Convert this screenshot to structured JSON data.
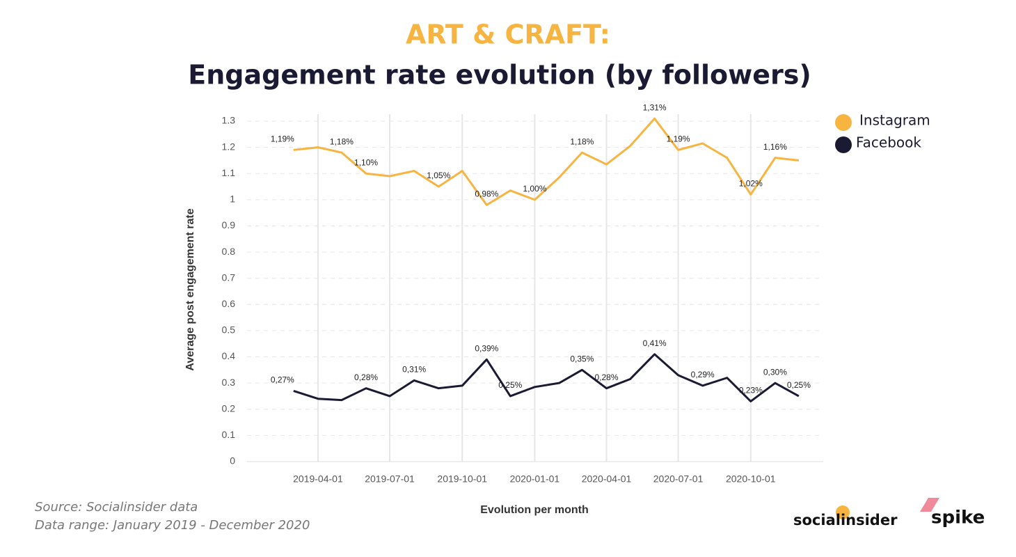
{
  "chart_data": {
    "type": "line",
    "title": "ART & CRAFT:",
    "subtitle": "Engagement rate evolution (by followers)",
    "x_label": "Evolution per month",
    "y_label": "Average post engagement rate",
    "source": "Source: Socialinsider data",
    "date_range": "Data range: January 2019 - December 2020",
    "brands": [
      "socialinsider",
      "spike"
    ],
    "x": [
      "2019-03-01",
      "2019-04-01",
      "2019-05-01",
      "2019-06-01",
      "2019-07-01",
      "2019-08-01",
      "2019-09-01",
      "2019-10-01",
      "2019-11-01",
      "2019-12-01",
      "2020-01-01",
      "2020-02-01",
      "2020-03-01",
      "2020-04-01",
      "2020-05-01",
      "2020-06-01",
      "2020-07-01",
      "2020-08-01",
      "2020-09-01",
      "2020-10-01",
      "2020-11-01",
      "2020-12-01"
    ],
    "xlim": [
      "2019-01-01",
      "2021-01-01"
    ],
    "xticks": [
      "2019-04-01",
      "2019-07-01",
      "2019-10-01",
      "2020-01-01",
      "2020-04-01",
      "2020-07-01",
      "2020-10-01"
    ],
    "ylim": [
      0,
      1.3
    ],
    "yticks": [
      0,
      0.1,
      0.2,
      0.3,
      0.4,
      0.5,
      0.6,
      0.7,
      0.8,
      0.9,
      1,
      1.1,
      1.2,
      1.3
    ],
    "grid": true,
    "legend": "right",
    "series": [
      {
        "name": "Instagram",
        "color": "#f7b440",
        "values": [
          1.19,
          1.2,
          1.18,
          1.1,
          1.09,
          1.11,
          1.05,
          1.11,
          0.98,
          1.035,
          1.0,
          1.085,
          1.18,
          1.135,
          1.205,
          1.31,
          1.19,
          1.215,
          1.16,
          1.02,
          1.16,
          1.15
        ],
        "value_labels": [
          "1,19%",
          null,
          "1,18%",
          "1,10%",
          null,
          null,
          "1,05%",
          null,
          "0,98%",
          null,
          "1,00%",
          null,
          "1,18%",
          null,
          null,
          "1,31%",
          "1,19%",
          null,
          null,
          "1,02%",
          "1,16%",
          null
        ]
      },
      {
        "name": "Facebook",
        "color": "#1b1a33",
        "values": [
          0.27,
          0.24,
          0.235,
          0.28,
          0.25,
          0.31,
          0.28,
          0.29,
          0.39,
          0.25,
          0.285,
          0.3,
          0.35,
          0.28,
          0.315,
          0.41,
          0.33,
          0.29,
          0.32,
          0.23,
          0.3,
          0.25
        ],
        "value_labels": [
          "0,27%",
          null,
          null,
          "0,28%",
          null,
          "0,31%",
          null,
          null,
          "0,39%",
          "0,25%",
          null,
          null,
          "0,35%",
          "0,28%",
          null,
          "0,41%",
          null,
          "0,29%",
          null,
          "0,23%",
          "0,30%",
          "0,25%"
        ]
      }
    ]
  }
}
